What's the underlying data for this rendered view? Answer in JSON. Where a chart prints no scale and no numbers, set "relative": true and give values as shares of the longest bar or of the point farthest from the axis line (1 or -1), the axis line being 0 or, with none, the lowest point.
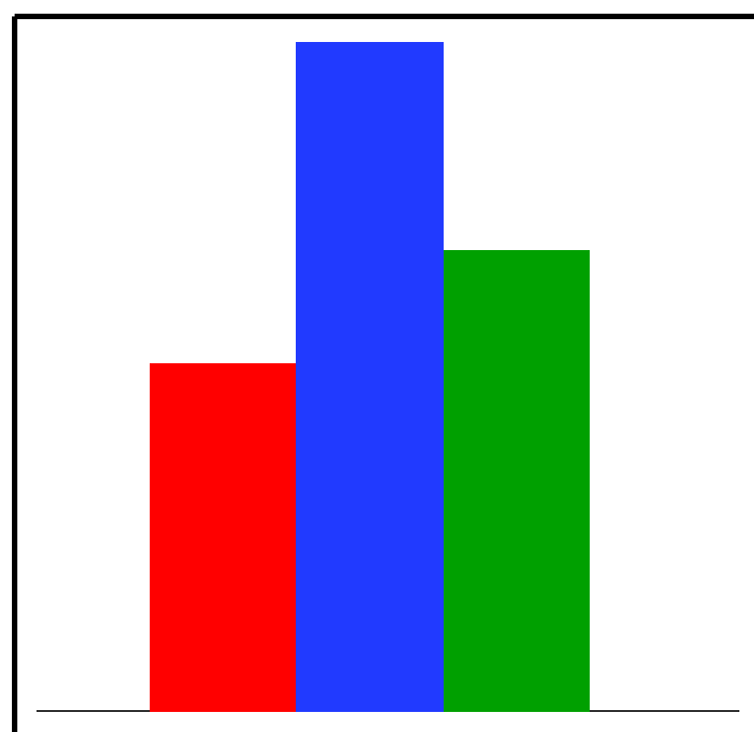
{
  "chart_data": {
    "type": "bar",
    "relative": true,
    "categories": [
      null,
      null,
      null
    ],
    "values": [
      0.52,
      1,
      0.69
    ],
    "colors": [
      "#ff0000",
      "#213aff",
      "#00a000"
    ]
  }
}
